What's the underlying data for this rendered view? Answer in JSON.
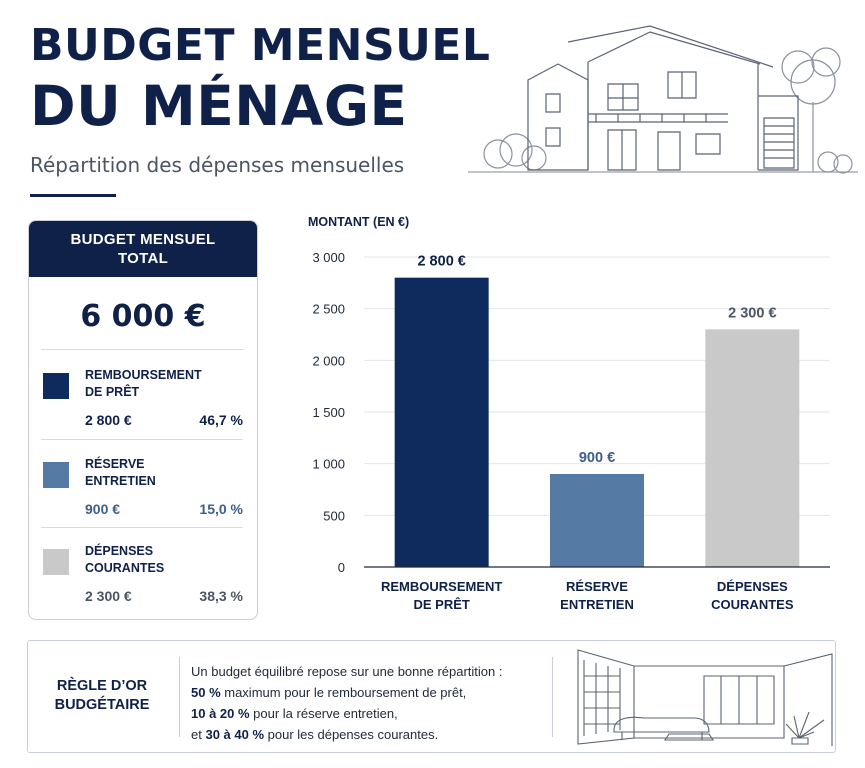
{
  "header": {
    "title_line1": "BUDGET MENSUEL",
    "title_line2": "DU MÉNAGE",
    "subtitle": "Répartition des dépenses mensuelles"
  },
  "summary": {
    "heading_line1": "BUDGET MENSUEL",
    "heading_line2": "TOTAL",
    "total": "6 000 €",
    "items": [
      {
        "label_line1": "REMBOURSEMENT",
        "label_line2": "DE PRÊT",
        "amount": "2 800 €",
        "percent": "46,7 %",
        "color": "#0f2a5c"
      },
      {
        "label_line1": "RÉSERVE",
        "label_line2": "ENTRETIEN",
        "amount": "900 €",
        "percent": "15,0 %",
        "color": "#557aa3"
      },
      {
        "label_line1": "DÉPENSES",
        "label_line2": "COURANTES",
        "amount": "2 300 €",
        "percent": "38,3 %",
        "color": "#c9c9c9"
      }
    ]
  },
  "chart_data": {
    "type": "bar",
    "ylabel": "MONTANT (EN €)",
    "ylim": [
      0,
      3000
    ],
    "y_ticks": [
      0,
      500,
      1000,
      1500,
      2000,
      2500,
      3000
    ],
    "y_tick_labels": [
      "0",
      "500",
      "1 000",
      "1 500",
      "2 000",
      "2 500",
      "3 000"
    ],
    "grid": true,
    "categories": [
      [
        "REMBOURSEMENT",
        "DE PRÊT"
      ],
      [
        "RÉSERVE",
        "ENTRETIEN"
      ],
      [
        "DÉPENSES",
        "COURANTES"
      ]
    ],
    "values": [
      2800,
      900,
      2300
    ],
    "value_labels": [
      "2 800 €",
      "900 €",
      "2 300 €"
    ],
    "colors": [
      "#0f2a5c",
      "#557aa3",
      "#c9c9c9"
    ],
    "label_colors": [
      "#0f2149",
      "#3d5f8a",
      "#4b5563"
    ]
  },
  "rule": {
    "title_line1": "RÈGLE D’OR",
    "title_line2": "BUDGÉTAIRE",
    "line1": "Un budget équilibré repose sur une bonne répartition :",
    "line2_bold": "50 %",
    "line2_rest": " maximum pour le remboursement de prêt,",
    "line3_bold": "10 à 20 %",
    "line3_rest": " pour la réserve entretien,",
    "line4_pre": "et ",
    "line4_bold": "30 à 40 %",
    "line4_rest": " pour les dépenses courantes."
  }
}
